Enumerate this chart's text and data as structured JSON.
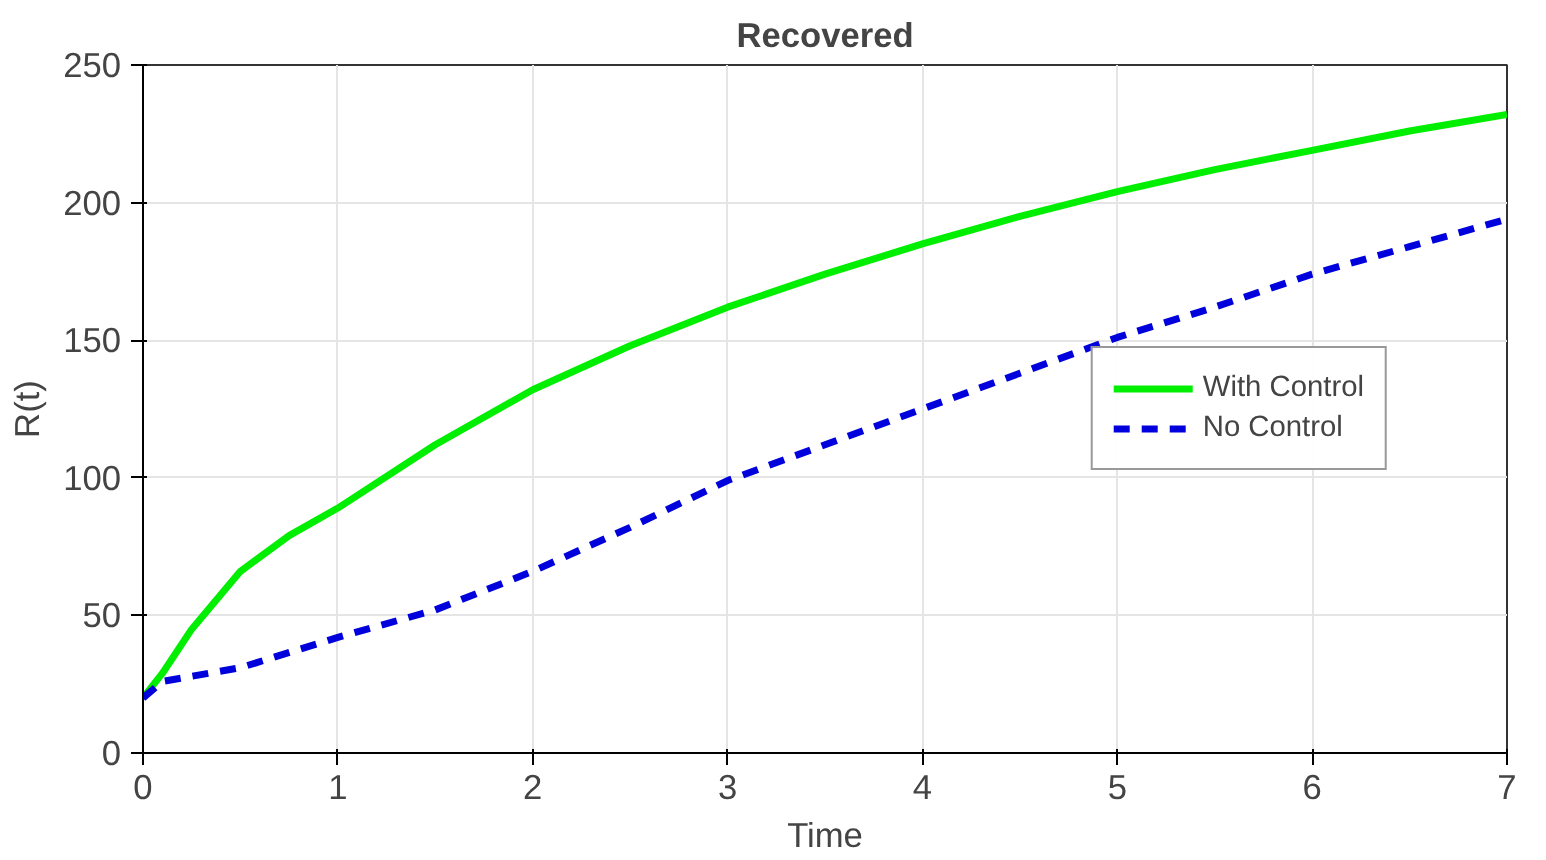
{
  "chart_data": {
    "type": "line",
    "title": "Recovered",
    "xlabel": "Time",
    "ylabel": "R(t)",
    "xlim": [
      0,
      7
    ],
    "xticks": [
      0,
      1,
      2,
      3,
      4,
      5,
      6,
      7
    ],
    "ylim": [
      0,
      250
    ],
    "yticks": [
      0,
      50,
      100,
      150,
      200,
      250
    ],
    "grid": true,
    "legend": "center right",
    "series": [
      {
        "name": "With Control",
        "color": "#00ee00",
        "line_style": "solid",
        "x": [
          0,
          0.1,
          0.25,
          0.5,
          0.75,
          1,
          1.5,
          2,
          2.5,
          3,
          3.5,
          4,
          4.5,
          5,
          5.5,
          6,
          6.5,
          7
        ],
        "values": [
          20,
          29,
          45,
          66,
          79,
          89,
          112,
          132,
          148,
          162,
          174,
          185,
          195,
          204,
          212,
          219,
          226,
          232
        ]
      },
      {
        "name": "No Control",
        "color": "#0000dd",
        "line_style": "dashed",
        "x": [
          0,
          0.1,
          0.5,
          1,
          1.5,
          2,
          2.5,
          3,
          3.5,
          4,
          4.5,
          5,
          5.5,
          6,
          6.5,
          7
        ],
        "values": [
          20,
          26,
          31,
          42,
          52,
          66,
          82,
          99,
          112,
          125,
          138,
          151,
          162,
          174,
          184,
          194
        ]
      }
    ]
  }
}
